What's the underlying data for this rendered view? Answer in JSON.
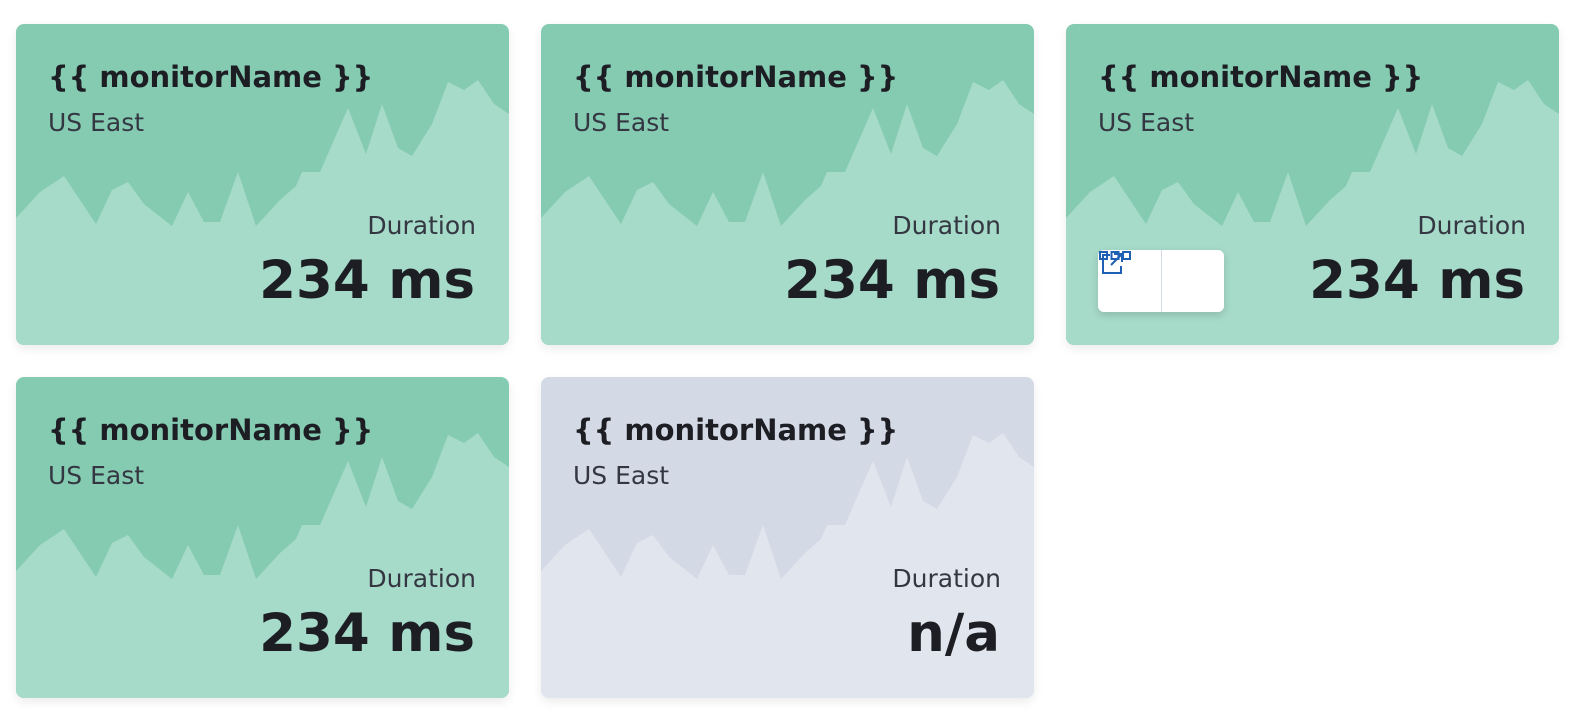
{
  "cards": [
    {
      "title": "{{ monitorName }}",
      "location": "US East",
      "metric_label": "Duration",
      "metric_value": "234 ms"
    },
    {
      "title": "{{ monitorName }}",
      "location": "US East",
      "metric_label": "Duration",
      "metric_value": "234 ms"
    },
    {
      "title": "{{ monitorName }}",
      "location": "US East",
      "metric_label": "Duration",
      "metric_value": "234 ms"
    },
    {
      "title": "{{ monitorName }}",
      "location": "US East",
      "metric_label": "Duration",
      "metric_value": "234 ms"
    },
    {
      "title": "{{ monitorName }}",
      "location": "US East",
      "metric_label": "Duration",
      "metric_value": "n/a"
    }
  ]
}
